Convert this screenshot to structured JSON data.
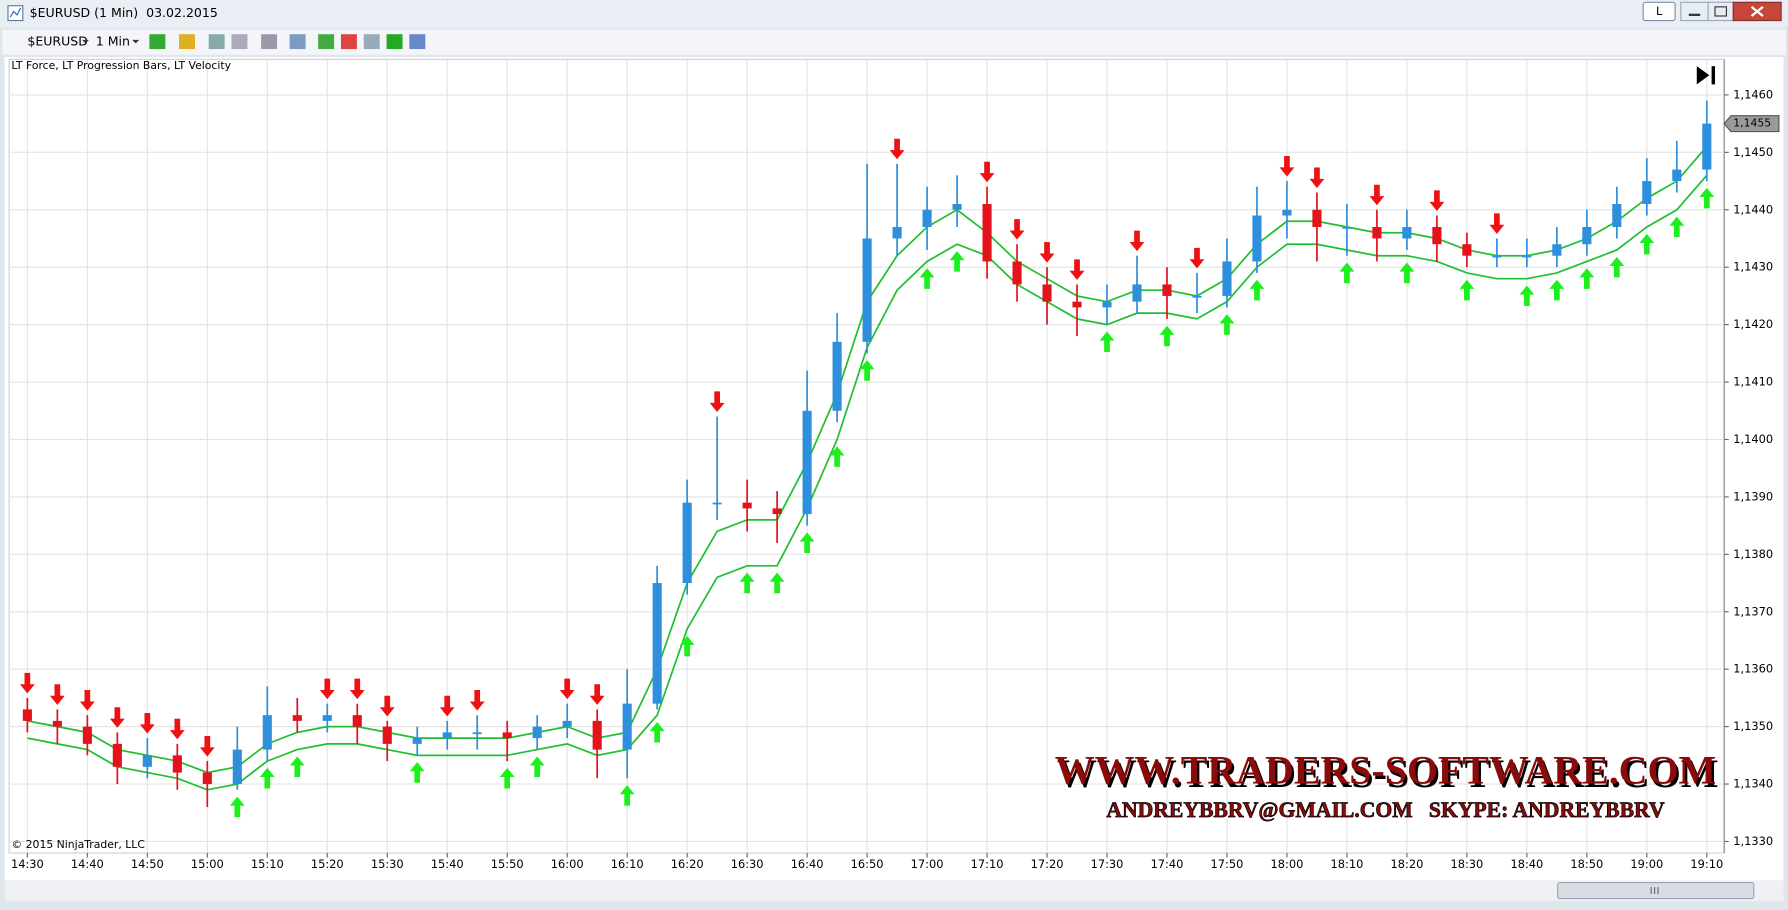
{
  "window": {
    "title": "$EURUSD (1 Min)  03.02.2015",
    "instrument": "$EURUSD",
    "interval": "1 Min",
    "layout_button": "L",
    "indicators": "LT Force, LT Progression Bars, LT Velocity",
    "copyright": "© 2015 NinjaTrader, LLC",
    "watermark": "WWW.TRADERS-SOFTWARE.COM",
    "contact": "ANDREYBBRV@GMAIL.COM   SKYPE: ANDREYBBRV"
  },
  "chart_data": {
    "type": "candlestick",
    "x": [
      "14:30",
      "14:35",
      "14:40",
      "14:45",
      "14:50",
      "14:55",
      "15:00",
      "15:05",
      "15:10",
      "15:15",
      "15:20",
      "15:25",
      "15:30",
      "15:35",
      "15:40",
      "15:45",
      "15:50",
      "15:55",
      "16:00",
      "16:05",
      "16:10",
      "16:15",
      "16:20",
      "16:25",
      "16:30",
      "16:35",
      "16:40",
      "16:45",
      "16:50",
      "16:55",
      "17:00",
      "17:05",
      "17:10",
      "17:15",
      "17:20",
      "17:25",
      "17:30",
      "17:35",
      "17:40",
      "17:45",
      "17:50",
      "17:55",
      "18:00",
      "18:05",
      "18:10",
      "18:15",
      "18:20",
      "18:25",
      "18:30",
      "18:35",
      "18:40",
      "18:45",
      "18:50",
      "18:55",
      "19:00",
      "19:05",
      "19:10"
    ],
    "open": [
      1.1353,
      1.1351,
      1.135,
      1.1347,
      1.1343,
      1.1345,
      1.1342,
      1.134,
      1.1346,
      1.1352,
      1.1351,
      1.1352,
      1.135,
      1.1347,
      1.1348,
      1.1349,
      1.1349,
      1.1348,
      1.135,
      1.1351,
      1.1346,
      1.1354,
      1.1375,
      1.1389,
      1.1389,
      1.1388,
      1.1387,
      1.1405,
      1.1417,
      1.1435,
      1.1437,
      1.144,
      1.1441,
      1.1431,
      1.1427,
      1.1424,
      1.1423,
      1.1424,
      1.1427,
      1.1425,
      1.1425,
      1.1431,
      1.1439,
      1.144,
      1.1437,
      1.1437,
      1.1435,
      1.1437,
      1.1434,
      1.1432,
      1.1432,
      1.1432,
      1.1434,
      1.1437,
      1.1441,
      1.1445,
      1.1447
    ],
    "high": [
      1.1355,
      1.1353,
      1.1352,
      1.1349,
      1.1348,
      1.1347,
      1.1344,
      1.135,
      1.1357,
      1.1355,
      1.1354,
      1.1354,
      1.1351,
      1.135,
      1.1351,
      1.1352,
      1.1351,
      1.1352,
      1.1354,
      1.1353,
      1.136,
      1.1378,
      1.1393,
      1.1404,
      1.1393,
      1.1391,
      1.1412,
      1.1422,
      1.1448,
      1.1448,
      1.1444,
      1.1446,
      1.1444,
      1.1434,
      1.143,
      1.1427,
      1.1427,
      1.1432,
      1.143,
      1.1429,
      1.1435,
      1.1444,
      1.1445,
      1.1443,
      1.1441,
      1.144,
      1.144,
      1.1439,
      1.1436,
      1.1435,
      1.1435,
      1.1437,
      1.144,
      1.1444,
      1.1449,
      1.1452,
      1.1459
    ],
    "low": [
      1.1349,
      1.1347,
      1.1345,
      1.134,
      1.1341,
      1.1339,
      1.1336,
      1.1339,
      1.1344,
      1.1349,
      1.1349,
      1.1347,
      1.1344,
      1.1345,
      1.1346,
      1.1346,
      1.1344,
      1.1346,
      1.1348,
      1.1341,
      1.1341,
      1.1353,
      1.1373,
      1.1386,
      1.1384,
      1.1382,
      1.1385,
      1.1403,
      1.1415,
      1.1432,
      1.1433,
      1.1437,
      1.1428,
      1.1424,
      1.142,
      1.1418,
      1.142,
      1.1422,
      1.1421,
      1.1422,
      1.1423,
      1.1429,
      1.1435,
      1.1431,
      1.1432,
      1.1431,
      1.1433,
      1.1431,
      1.143,
      1.143,
      1.143,
      1.143,
      1.1432,
      1.1435,
      1.1439,
      1.1443,
      1.1445
    ],
    "close": [
      1.1351,
      1.135,
      1.1347,
      1.1343,
      1.1345,
      1.1342,
      1.134,
      1.1346,
      1.1352,
      1.1351,
      1.1352,
      1.135,
      1.1347,
      1.1348,
      1.1349,
      1.1349,
      1.1348,
      1.135,
      1.1351,
      1.1346,
      1.1354,
      1.1375,
      1.1389,
      1.1389,
      1.1388,
      1.1387,
      1.1405,
      1.1417,
      1.1435,
      1.1437,
      1.144,
      1.1441,
      1.1431,
      1.1427,
      1.1424,
      1.1423,
      1.1424,
      1.1427,
      1.1425,
      1.1425,
      1.1431,
      1.1439,
      1.144,
      1.1437,
      1.1437,
      1.1435,
      1.1437,
      1.1434,
      1.1432,
      1.1432,
      1.1432,
      1.1434,
      1.1437,
      1.1441,
      1.1445,
      1.1447,
      1.1455
    ],
    "bands": [
      {
        "color": "#1fbf2f",
        "values": [
          1.1351,
          1.135,
          1.1349,
          1.1346,
          1.1345,
          1.1344,
          1.1342,
          1.1343,
          1.1347,
          1.1349,
          1.135,
          1.135,
          1.1349,
          1.1348,
          1.1348,
          1.1348,
          1.1348,
          1.1349,
          1.135,
          1.1348,
          1.1349,
          1.136,
          1.1375,
          1.1384,
          1.1386,
          1.1386,
          1.1396,
          1.1408,
          1.1424,
          1.1432,
          1.1437,
          1.144,
          1.1436,
          1.1431,
          1.1428,
          1.1425,
          1.1424,
          1.1426,
          1.1426,
          1.1425,
          1.1428,
          1.1434,
          1.1438,
          1.1438,
          1.1437,
          1.1436,
          1.1436,
          1.1435,
          1.1433,
          1.1432,
          1.1432,
          1.1433,
          1.1435,
          1.1438,
          1.1442,
          1.1445,
          1.1451
        ]
      },
      {
        "color": "#1fbf2f",
        "values": [
          1.1348,
          1.1347,
          1.1346,
          1.1343,
          1.1342,
          1.1341,
          1.1339,
          1.134,
          1.1344,
          1.1346,
          1.1347,
          1.1347,
          1.1346,
          1.1345,
          1.1345,
          1.1345,
          1.1345,
          1.1346,
          1.1347,
          1.1345,
          1.1346,
          1.1352,
          1.1367,
          1.1376,
          1.1378,
          1.1378,
          1.1388,
          1.14,
          1.1416,
          1.1426,
          1.1431,
          1.1434,
          1.1432,
          1.1427,
          1.1424,
          1.1421,
          1.142,
          1.1422,
          1.1422,
          1.1421,
          1.1424,
          1.143,
          1.1434,
          1.1434,
          1.1433,
          1.1432,
          1.1432,
          1.1431,
          1.1429,
          1.1428,
          1.1428,
          1.1429,
          1.1431,
          1.1433,
          1.1437,
          1.144,
          1.1446
        ]
      }
    ],
    "signals": [
      -1,
      -1,
      -1,
      -1,
      -1,
      -1,
      -1,
      1,
      1,
      1,
      -1,
      -1,
      -1,
      1,
      -1,
      -1,
      1,
      1,
      -1,
      -1,
      1,
      1,
      1,
      -1,
      1,
      1,
      1,
      1,
      1,
      -1,
      1,
      1,
      -1,
      -1,
      -1,
      -1,
      1,
      -1,
      1,
      -1,
      1,
      1,
      -1,
      -1,
      1,
      -1,
      1,
      -1,
      1,
      -1,
      1,
      1,
      1,
      1,
      1,
      1,
      1
    ],
    "up_color": "#2e8fdc",
    "down_color": "#e3121b",
    "up_arrow_color": "#1cf01c",
    "down_arrow_color": "#ee1111",
    "ylim": [
      1.1328,
      1.14662
    ],
    "yticks": [
      {
        "value": 1.133,
        "label": "1,1330"
      },
      {
        "value": 1.134,
        "label": "1,1340"
      },
      {
        "value": 1.135,
        "label": "1,1350"
      },
      {
        "value": 1.136,
        "label": "1,1360"
      },
      {
        "value": 1.137,
        "label": "1,1370"
      },
      {
        "value": 1.138,
        "label": "1,1380"
      },
      {
        "value": 1.139,
        "label": "1,1390"
      },
      {
        "value": 1.14,
        "label": "1,1400"
      },
      {
        "value": 1.141,
        "label": "1,1410"
      },
      {
        "value": 1.142,
        "label": "1,1420"
      },
      {
        "value": 1.143,
        "label": "1,1430"
      },
      {
        "value": 1.144,
        "label": "1,1440"
      },
      {
        "value": 1.145,
        "label": "1,1450"
      },
      {
        "value": 1.146,
        "label": "1,1460"
      }
    ],
    "xticks": [
      "14:30",
      "14:40",
      "14:50",
      "15:00",
      "15:10",
      "15:20",
      "15:30",
      "15:40",
      "15:50",
      "16:00",
      "16:10",
      "16:20",
      "16:30",
      "16:40",
      "16:50",
      "17:00",
      "17:10",
      "17:20",
      "17:30",
      "17:40",
      "17:50",
      "18:00",
      "18:10",
      "18:20",
      "18:30",
      "18:40",
      "18:50",
      "19:00",
      "19:10"
    ],
    "last_price": {
      "value": 1.1455,
      "label": "1,1455"
    },
    "grid": true
  }
}
